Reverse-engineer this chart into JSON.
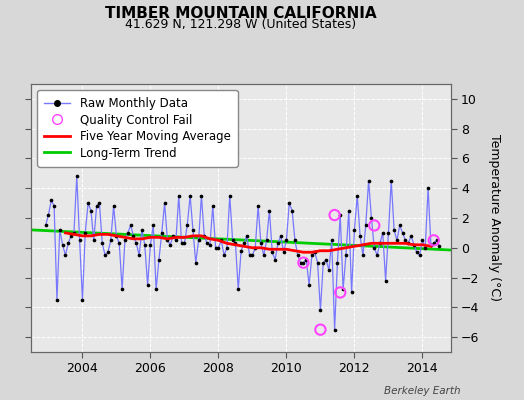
{
  "title": "TIMBER MOUNTAIN CALIFORNIA",
  "subtitle": "41.629 N, 121.298 W (United States)",
  "ylabel": "Temperature Anomaly (°C)",
  "credit": "Berkeley Earth",
  "xlim": [
    2002.5,
    2014.83
  ],
  "ylim": [
    -7,
    11
  ],
  "yticks": [
    -6,
    -4,
    -2,
    0,
    2,
    4,
    6,
    8,
    10
  ],
  "bg_color": "#d8d8d8",
  "plot_bg_color": "#e8e8e8",
  "raw_line_color": "#7777ff",
  "raw_marker_color": "#000000",
  "ma_color": "#ff0000",
  "trend_color": "#00cc00",
  "qc_color": "#ff44ff",
  "raw_monthly_x": [
    2002.917,
    2003.0,
    2003.083,
    2003.167,
    2003.25,
    2003.333,
    2003.417,
    2003.5,
    2003.583,
    2003.667,
    2003.75,
    2003.833,
    2003.917,
    2004.0,
    2004.083,
    2004.167,
    2004.25,
    2004.333,
    2004.417,
    2004.5,
    2004.583,
    2004.667,
    2004.75,
    2004.833,
    2004.917,
    2005.0,
    2005.083,
    2005.167,
    2005.25,
    2005.333,
    2005.417,
    2005.5,
    2005.583,
    2005.667,
    2005.75,
    2005.833,
    2005.917,
    2006.0,
    2006.083,
    2006.167,
    2006.25,
    2006.333,
    2006.417,
    2006.5,
    2006.583,
    2006.667,
    2006.75,
    2006.833,
    2006.917,
    2007.0,
    2007.083,
    2007.167,
    2007.25,
    2007.333,
    2007.417,
    2007.5,
    2007.583,
    2007.667,
    2007.75,
    2007.833,
    2007.917,
    2008.0,
    2008.083,
    2008.167,
    2008.25,
    2008.333,
    2008.417,
    2008.5,
    2008.583,
    2008.667,
    2008.75,
    2008.833,
    2008.917,
    2009.0,
    2009.083,
    2009.167,
    2009.25,
    2009.333,
    2009.417,
    2009.5,
    2009.583,
    2009.667,
    2009.75,
    2009.833,
    2009.917,
    2010.0,
    2010.083,
    2010.167,
    2010.25,
    2010.333,
    2010.417,
    2010.5,
    2010.583,
    2010.667,
    2010.75,
    2010.833,
    2010.917,
    2011.0,
    2011.083,
    2011.167,
    2011.25,
    2011.333,
    2011.417,
    2011.5,
    2011.583,
    2011.667,
    2011.75,
    2011.833,
    2011.917,
    2012.0,
    2012.083,
    2012.167,
    2012.25,
    2012.333,
    2012.417,
    2012.5,
    2012.583,
    2012.667,
    2012.75,
    2012.833,
    2012.917,
    2013.0,
    2013.083,
    2013.167,
    2013.25,
    2013.333,
    2013.417,
    2013.5,
    2013.583,
    2013.667,
    2013.75,
    2013.833,
    2013.917,
    2014.0,
    2014.083,
    2014.167,
    2014.25,
    2014.333,
    2014.417,
    2014.5
  ],
  "raw_monthly_y": [
    1.5,
    2.2,
    3.2,
    2.8,
    -3.5,
    1.2,
    0.2,
    -0.5,
    0.3,
    0.8,
    1.0,
    4.8,
    0.5,
    -3.5,
    1.0,
    3.0,
    2.5,
    0.5,
    2.8,
    3.0,
    0.3,
    -0.5,
    -0.3,
    0.5,
    2.8,
    0.8,
    0.3,
    -2.8,
    0.5,
    1.0,
    1.5,
    0.8,
    0.3,
    -0.5,
    1.2,
    0.2,
    -2.5,
    0.2,
    1.5,
    -2.8,
    -0.8,
    1.0,
    3.0,
    0.5,
    0.2,
    0.8,
    0.5,
    3.5,
    0.3,
    0.3,
    1.5,
    3.5,
    1.2,
    -1.0,
    0.5,
    3.5,
    0.8,
    0.3,
    0.2,
    2.8,
    0.0,
    0.0,
    0.5,
    -0.5,
    0.0,
    3.5,
    0.5,
    0.3,
    -2.8,
    -0.2,
    0.3,
    0.8,
    -0.5,
    -0.5,
    0.0,
    2.8,
    0.3,
    -0.5,
    0.5,
    2.5,
    -0.3,
    -0.8,
    0.3,
    0.8,
    -0.3,
    0.5,
    3.0,
    2.5,
    0.5,
    -0.5,
    -1.0,
    -1.0,
    -0.8,
    -2.5,
    -0.5,
    -0.3,
    -1.0,
    -4.2,
    -1.0,
    -0.8,
    -1.5,
    0.5,
    -5.5,
    -1.0,
    2.2,
    -2.8,
    -0.5,
    2.5,
    -3.0,
    1.2,
    3.5,
    0.8,
    -0.5,
    1.5,
    4.5,
    2.0,
    0.0,
    -0.5,
    0.3,
    1.0,
    -2.2,
    1.0,
    4.5,
    1.2,
    0.5,
    1.5,
    1.0,
    0.5,
    0.3,
    0.8,
    0.2,
    -0.3,
    -0.5,
    0.5,
    0.0,
    4.0,
    0.2,
    0.3,
    0.5,
    0.1
  ],
  "moving_avg_x": [
    2003.5,
    2003.75,
    2004.0,
    2004.25,
    2004.5,
    2004.75,
    2005.0,
    2005.25,
    2005.5,
    2005.75,
    2006.0,
    2006.25,
    2006.5,
    2006.75,
    2007.0,
    2007.25,
    2007.5,
    2007.75,
    2008.0,
    2008.25,
    2008.5,
    2008.75,
    2009.0,
    2009.25,
    2009.5,
    2009.75,
    2010.0,
    2010.25,
    2010.5,
    2010.75,
    2011.0,
    2011.25,
    2011.5,
    2011.75,
    2012.0,
    2012.25,
    2012.5,
    2012.75,
    2013.0,
    2013.25,
    2013.5,
    2013.75,
    2014.0,
    2014.25
  ],
  "moving_avg_y": [
    1.0,
    0.9,
    0.8,
    0.8,
    0.9,
    0.9,
    0.8,
    0.7,
    0.6,
    0.6,
    0.7,
    0.7,
    0.6,
    0.7,
    0.7,
    0.8,
    0.8,
    0.6,
    0.5,
    0.3,
    0.2,
    0.1,
    0.0,
    0.0,
    -0.1,
    -0.1,
    -0.1,
    -0.2,
    -0.3,
    -0.3,
    -0.2,
    -0.2,
    -0.1,
    0.0,
    0.1,
    0.2,
    0.3,
    0.3,
    0.3,
    0.3,
    0.3,
    0.2,
    0.2,
    0.1
  ],
  "trend_x": [
    2002.5,
    2014.83
  ],
  "trend_y": [
    1.2,
    -0.15
  ],
  "qc_fail_x": [
    2010.5,
    2011.0,
    2011.417,
    2011.583,
    2012.583,
    2014.333
  ],
  "qc_fail_y": [
    -1.0,
    -5.5,
    2.2,
    -3.0,
    1.5,
    0.5
  ],
  "xticks": [
    2004,
    2006,
    2008,
    2010,
    2012,
    2014
  ],
  "title_fontsize": 11,
  "subtitle_fontsize": 9,
  "tick_fontsize": 9,
  "legend_fontsize": 8.5
}
